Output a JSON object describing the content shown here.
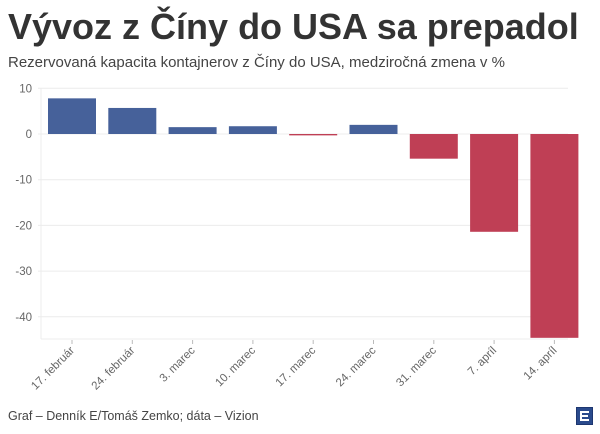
{
  "header": {
    "title": "Vývoz z Číny do USA sa prepadol",
    "subtitle": "Rezervovaná kapacita kontajnerov z Číny do USA, medziročná zmena v %"
  },
  "footer": {
    "credit": "Graf – Denník E/Tomáš Zemko; dáta – Vizion",
    "logo_icon": "denník-e-logo-icon"
  },
  "chart_data": {
    "type": "bar",
    "title": "Vývoz z Číny do USA sa prepadol",
    "subtitle": "Rezervovaná kapacita kontajnerov z Číny do USA, medziročná zmena v %",
    "xlabel": "",
    "ylabel": "",
    "categories": [
      "17. február",
      "24. február",
      "3. marec",
      "10. marec",
      "17. marec",
      "24. marec",
      "31. marec",
      "7. apríl",
      "14. apríl"
    ],
    "values": [
      7.8,
      5.7,
      1.5,
      1.7,
      -0.3,
      2.0,
      -5.4,
      -21.4,
      -44.6
    ],
    "ylim": [
      -45,
      10
    ],
    "yticks": [
      10,
      0,
      -10,
      -20,
      -30,
      -40
    ],
    "grid": true,
    "colors": {
      "positive": "#46619a",
      "negative": "#bf3f55"
    },
    "legend": "none"
  }
}
